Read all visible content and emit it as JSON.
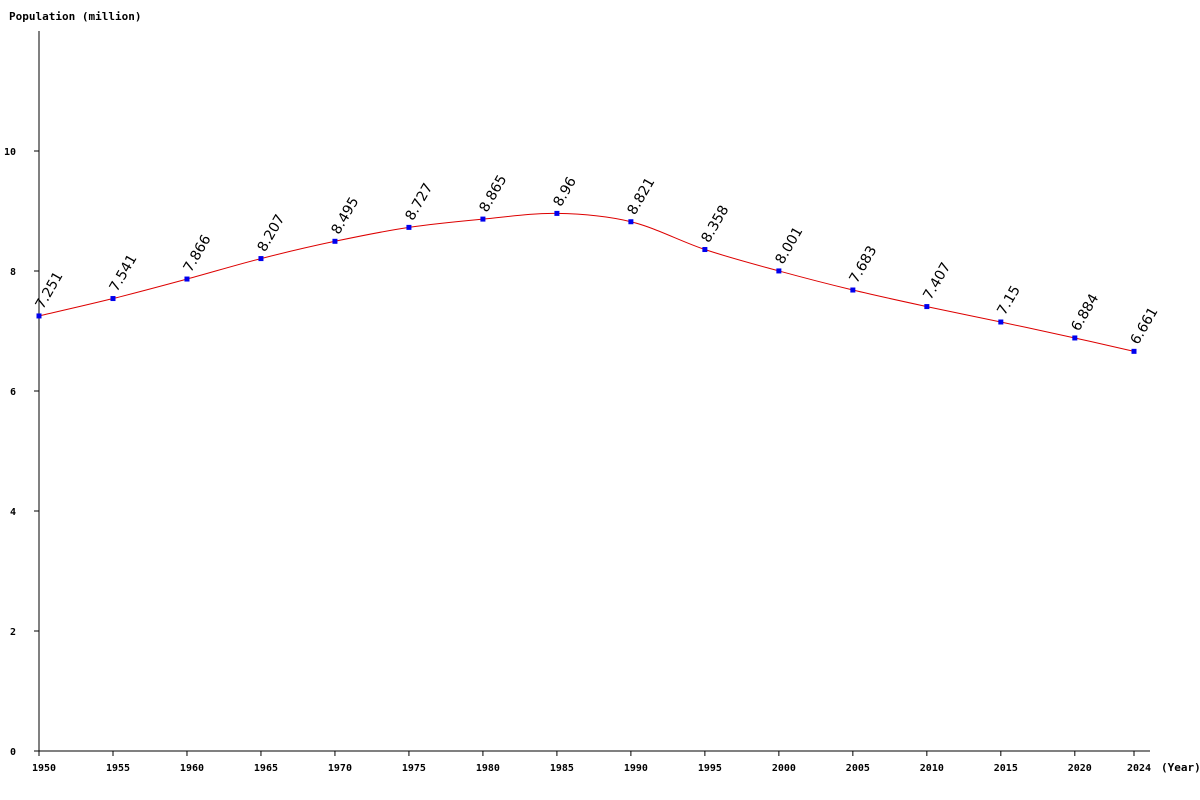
{
  "colors": {
    "line": "#dd0000",
    "marker": "#0000ee",
    "axis": "#000000",
    "background": "#ffffff"
  },
  "chart_data": {
    "type": "line",
    "title": "",
    "ylabel": "Population (million)",
    "xlabel": "(Year)",
    "grid": false,
    "legend": "none",
    "xlim": [
      1950,
      2024
    ],
    "ylim": [
      0,
      12
    ],
    "y_ticks": [
      0,
      2,
      4,
      6,
      8,
      10
    ],
    "x_ticks": [
      1950,
      1955,
      1960,
      1965,
      1970,
      1975,
      1980,
      1985,
      1990,
      1995,
      2000,
      2005,
      2010,
      2015,
      2020,
      2024
    ],
    "x": [
      1950,
      1955,
      1960,
      1965,
      1970,
      1975,
      1980,
      1985,
      1990,
      1995,
      2000,
      2005,
      2010,
      2015,
      2020,
      2024
    ],
    "values": [
      7.251,
      7.541,
      7.866,
      8.207,
      8.495,
      8.727,
      8.865,
      8.96,
      8.821,
      8.358,
      8.001,
      7.683,
      7.407,
      7.15,
      6.884,
      6.661
    ],
    "data_labels": [
      "7.251",
      "7.541",
      "7.866",
      "8.207",
      "8.495",
      "8.727",
      "8.865",
      "8.96",
      "8.821",
      "8.358",
      "8.001",
      "7.683",
      "7.407",
      "7.15",
      "6.884",
      "6.661"
    ]
  }
}
